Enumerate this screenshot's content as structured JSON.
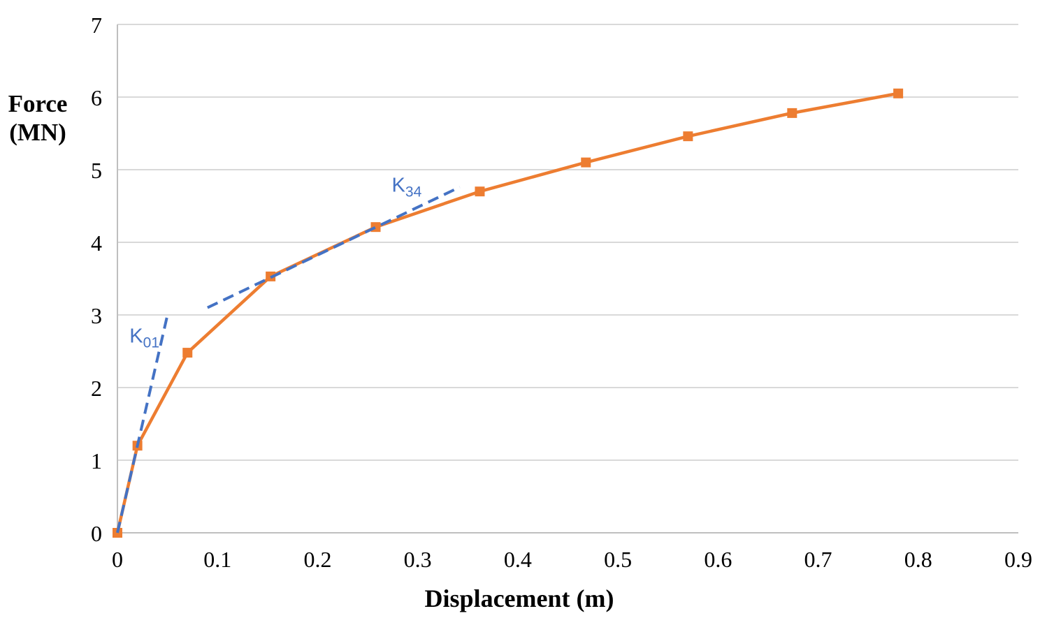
{
  "chart_data": {
    "type": "line",
    "title": "",
    "xlabel": "Displacement (m)",
    "ylabel": "Force (MN)",
    "xlim": [
      0,
      0.9
    ],
    "ylim": [
      0,
      7
    ],
    "x_ticks": [
      "0",
      "0.1",
      "0.2",
      "0.3",
      "0.4",
      "0.5",
      "0.6",
      "0.7",
      "0.8",
      "0.9"
    ],
    "y_ticks": [
      "0",
      "1",
      "2",
      "3",
      "4",
      "5",
      "6",
      "7"
    ],
    "grid": "horizontal-only",
    "legend": "none",
    "colors": {
      "grid": "#D9D9D9",
      "axis": "#BFBFBF",
      "tick_text": "#000000",
      "series_orange": "#ED7D31",
      "series_blue": "#4472C4"
    },
    "series": [
      {
        "name": "force-displacement-curve",
        "style": "solid-with-square-markers",
        "color": "#ED7D31",
        "x": [
          0,
          0.02,
          0.07,
          0.153,
          0.258,
          0.362,
          0.468,
          0.57,
          0.674,
          0.78
        ],
        "y": [
          0,
          1.2,
          2.48,
          3.53,
          4.21,
          4.7,
          5.1,
          5.46,
          5.78,
          6.05
        ]
      },
      {
        "name": "K01-stiffness-line",
        "style": "dashed",
        "color": "#4472C4",
        "x": [
          0,
          0.05
        ],
        "y": [
          0,
          3.0
        ]
      },
      {
        "name": "K34-stiffness-line",
        "style": "dashed",
        "color": "#4472C4",
        "x": [
          0.09,
          0.342
        ],
        "y": [
          3.1,
          4.76
        ]
      }
    ],
    "annotations": [
      {
        "main": "K",
        "sub": "01",
        "x": 0.027,
        "y": 2.7,
        "color": "#4472C4"
      },
      {
        "main": "K",
        "sub": "34",
        "x": 0.289,
        "y": 4.78,
        "color": "#4472C4"
      }
    ]
  }
}
